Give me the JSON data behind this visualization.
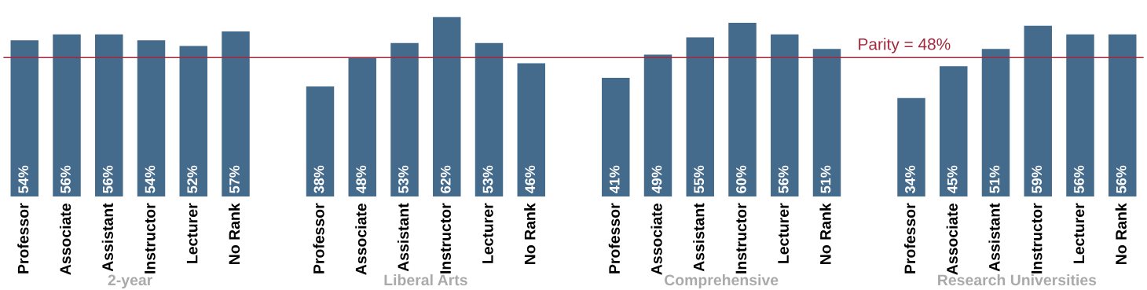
{
  "chart_data": {
    "type": "bar",
    "categories": [
      "Professor",
      "Associate",
      "Assistant",
      "Instructor",
      "Lecturer",
      "No Rank",
      null,
      "Professor",
      "Associate",
      "Assistant",
      "Instructor",
      "Lecturer",
      "No Rank",
      null,
      "Professor",
      "Associate",
      "Assistant",
      "Instructor",
      "Lecturer",
      "No Rank",
      null,
      "Professor",
      "Associate",
      "Assistant",
      "Instructor",
      "Lecturer",
      "No Rank"
    ],
    "values": [
      54,
      56,
      56,
      54,
      52,
      57,
      null,
      38,
      48,
      53,
      62,
      53,
      46,
      null,
      41,
      49,
      55,
      60,
      56,
      51,
      null,
      34,
      45,
      51,
      59,
      56,
      56
    ],
    "value_labels": [
      "54%",
      "56%",
      "56%",
      "54%",
      "52%",
      "57%",
      null,
      "38%",
      "48%",
      "53%",
      "62%",
      "53%",
      "46%",
      null,
      "41%",
      "49%",
      "55%",
      "60%",
      "56%",
      "51%",
      null,
      "34%",
      "45%",
      "51%",
      "59%",
      "56%",
      "56%"
    ],
    "color": "#456b8c",
    "ylim": [
      0,
      63
    ],
    "grid": false,
    "legend": false,
    "ref_lines": [
      {
        "axis": "y",
        "value": 48,
        "label": "Parity = 48%",
        "color": "#a3283c"
      }
    ],
    "annotations": [
      "2-year",
      "Liberal Arts",
      "Comprehensive",
      "Research Universities"
    ]
  }
}
